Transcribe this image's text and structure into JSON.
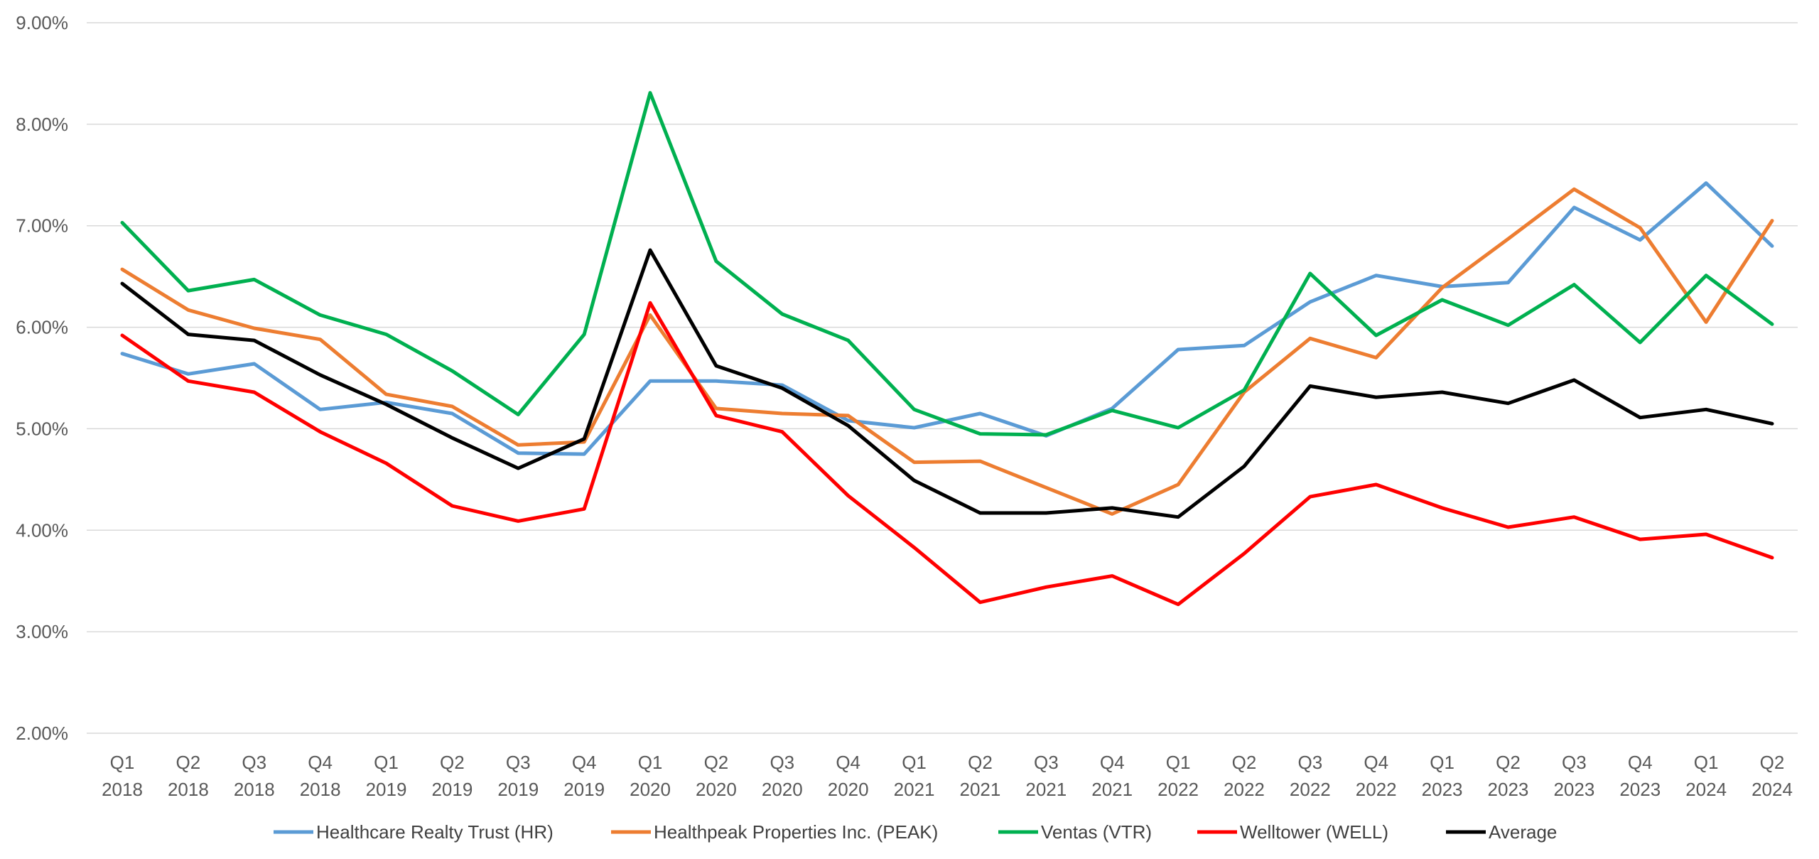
{
  "chart_data": {
    "type": "line",
    "title": "",
    "xlabel": "",
    "ylabel": "",
    "ylim": [
      2.0,
      9.0
    ],
    "y_ticks": [
      "2.00%",
      "3.00%",
      "4.00%",
      "5.00%",
      "6.00%",
      "7.00%",
      "8.00%",
      "9.00%"
    ],
    "y_tick_values": [
      2,
      3,
      4,
      5,
      6,
      7,
      8,
      9
    ],
    "grid": true,
    "legend_position": "bottom",
    "categories": [
      [
        "Q1",
        "2018"
      ],
      [
        "Q2",
        "2018"
      ],
      [
        "Q3",
        "2018"
      ],
      [
        "Q4",
        "2018"
      ],
      [
        "Q1",
        "2019"
      ],
      [
        "Q2",
        "2019"
      ],
      [
        "Q3",
        "2019"
      ],
      [
        "Q4",
        "2019"
      ],
      [
        "Q1",
        "2020"
      ],
      [
        "Q2",
        "2020"
      ],
      [
        "Q3",
        "2020"
      ],
      [
        "Q4",
        "2020"
      ],
      [
        "Q1",
        "2021"
      ],
      [
        "Q2",
        "2021"
      ],
      [
        "Q3",
        "2021"
      ],
      [
        "Q4",
        "2021"
      ],
      [
        "Q1",
        "2022"
      ],
      [
        "Q2",
        "2022"
      ],
      [
        "Q3",
        "2022"
      ],
      [
        "Q4",
        "2022"
      ],
      [
        "Q1",
        "2023"
      ],
      [
        "Q2",
        "2023"
      ],
      [
        "Q3",
        "2023"
      ],
      [
        "Q4",
        "2023"
      ],
      [
        "Q1",
        "2024"
      ],
      [
        "Q2",
        "2024"
      ]
    ],
    "series": [
      {
        "name": "Healthcare Realty Trust (HR)",
        "color": "#5b9bd5",
        "values": [
          5.74,
          5.54,
          5.64,
          5.19,
          5.26,
          5.15,
          4.76,
          4.75,
          5.47,
          5.47,
          5.43,
          5.08,
          5.01,
          5.15,
          4.93,
          5.2,
          5.78,
          5.82,
          6.25,
          6.51,
          6.4,
          6.44,
          7.18,
          6.86,
          7.42,
          6.8
        ]
      },
      {
        "name": "Healthpeak Properties Inc. (PEAK)",
        "color": "#ed7d31",
        "values": [
          6.57,
          6.17,
          5.99,
          5.88,
          5.34,
          5.22,
          4.84,
          4.87,
          6.12,
          5.2,
          5.15,
          5.13,
          4.67,
          4.68,
          4.42,
          4.16,
          4.45,
          5.36,
          5.89,
          5.7,
          6.39,
          6.87,
          7.36,
          6.98,
          6.05,
          7.05
        ]
      },
      {
        "name": "Ventas (VTR)",
        "color": "#00b050",
        "values": [
          7.03,
          6.36,
          6.47,
          6.12,
          5.93,
          5.57,
          5.14,
          5.93,
          8.31,
          6.65,
          6.13,
          5.87,
          5.19,
          4.95,
          4.94,
          5.18,
          5.01,
          5.38,
          6.53,
          5.92,
          6.27,
          6.02,
          6.42,
          5.85,
          6.51,
          6.03
        ]
      },
      {
        "name": "Welltower (WELL)",
        "color": "#ff0000",
        "values": [
          5.92,
          5.47,
          5.36,
          4.97,
          4.66,
          4.24,
          4.09,
          4.21,
          6.24,
          5.13,
          4.97,
          4.34,
          3.83,
          3.29,
          3.44,
          3.55,
          3.27,
          3.77,
          4.33,
          4.45,
          4.22,
          4.03,
          4.13,
          3.91,
          3.96,
          3.73
        ]
      },
      {
        "name": "Average",
        "color": "#000000",
        "values": [
          6.43,
          5.93,
          5.87,
          5.53,
          5.24,
          4.91,
          4.61,
          4.9,
          6.76,
          5.62,
          5.4,
          5.03,
          4.49,
          4.17,
          4.17,
          4.22,
          4.13,
          4.63,
          5.42,
          5.31,
          5.36,
          5.25,
          5.48,
          5.11,
          5.19,
          5.05
        ]
      }
    ]
  }
}
